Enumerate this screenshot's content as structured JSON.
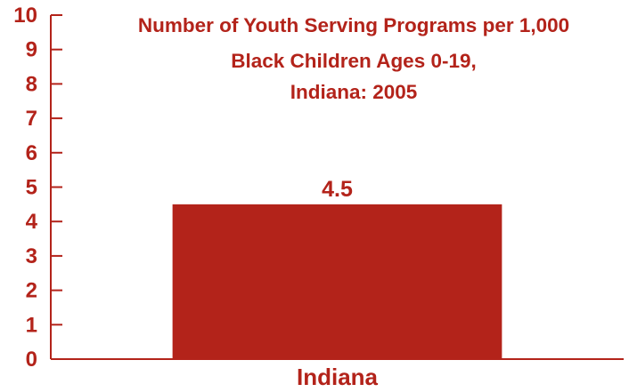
{
  "chart_data": {
    "type": "bar",
    "title_lines": [
      "Number of Youth Serving Programs per 1,000",
      "Black Children Ages 0-19,",
      "Indiana: 2005"
    ],
    "categories": [
      "Indiana"
    ],
    "values": [
      4.5
    ],
    "data_labels": [
      "4.5"
    ],
    "ylim": [
      0,
      10
    ],
    "yticks": [
      "0",
      "1",
      "2",
      "3",
      "4",
      "5",
      "6",
      "7",
      "8",
      "9",
      "10"
    ],
    "xlabel": "",
    "ylabel": "",
    "grid": false,
    "legend": "none",
    "bar_color": "#b3231a",
    "text_color": "#b3231a",
    "axis_color": "#b3231a"
  }
}
